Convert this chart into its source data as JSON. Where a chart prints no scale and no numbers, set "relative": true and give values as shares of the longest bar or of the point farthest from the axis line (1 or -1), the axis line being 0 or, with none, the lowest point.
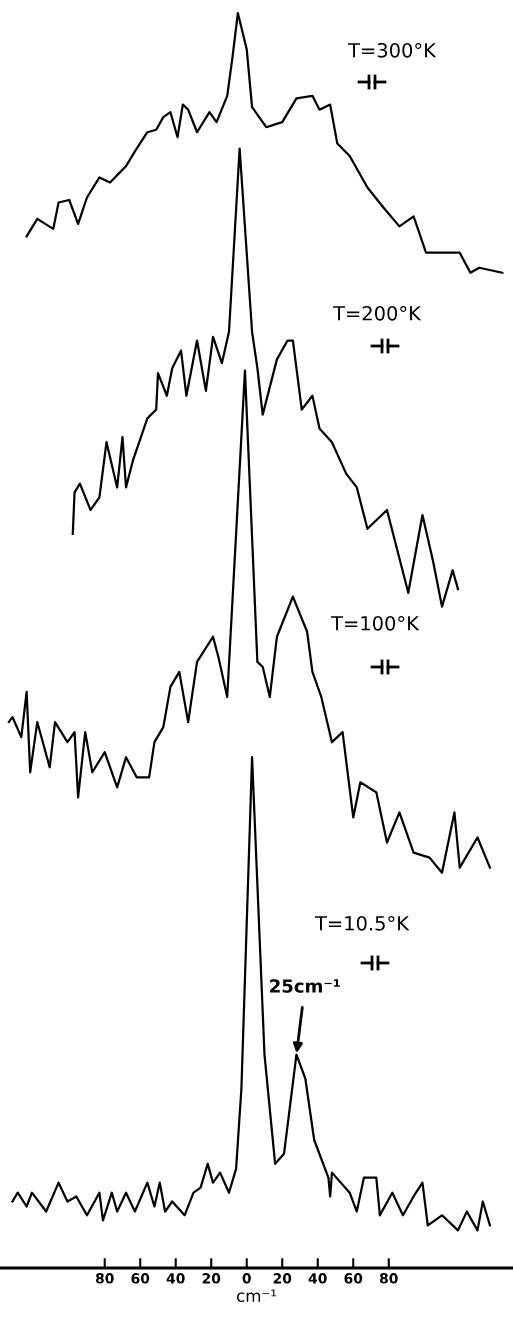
{
  "chart_data": {
    "type": "line",
    "relative": true,
    "xlim": [
      -139,
      150
    ],
    "xlabel": "cm⁻¹",
    "grid": false,
    "legend": false,
    "xticks": [
      {
        "value": -80,
        "label": "80"
      },
      {
        "value": -60,
        "label": "60"
      },
      {
        "value": -40,
        "label": "40"
      },
      {
        "value": -20,
        "label": "20"
      },
      0,
      20,
      40,
      60,
      80
    ],
    "annotations": [
      {
        "text": "25cm⁻¹",
        "x": 28,
        "y": 0.17
      }
    ],
    "series": [
      {
        "name": "T=300°K",
        "color": "#000000",
        "x": [
          -124,
          -118,
          -109,
          -106,
          -100,
          -95,
          -90,
          -83,
          -77,
          -68,
          -62,
          -56,
          -51,
          -47,
          -43,
          -39,
          -36,
          -33,
          -28,
          -21,
          -17,
          -11,
          -8,
          -5,
          0,
          3,
          11,
          20,
          28,
          37,
          41,
          47,
          51,
          58,
          68,
          77,
          86,
          94,
          101,
          110,
          120,
          126,
          131,
          144
        ],
        "values": [
          0.822,
          0.836,
          0.828,
          0.849,
          0.851,
          0.832,
          0.853,
          0.869,
          0.865,
          0.878,
          0.892,
          0.905,
          0.907,
          0.917,
          0.921,
          0.901,
          0.927,
          0.923,
          0.905,
          0.921,
          0.913,
          0.934,
          0.965,
          1,
          0.971,
          0.925,
          0.909,
          0.913,
          0.932,
          0.934,
          0.923,
          0.927,
          0.896,
          0.886,
          0.861,
          0.845,
          0.83,
          0.838,
          0.809,
          0.809,
          0.809,
          0.793,
          0.797,
          0.793
        ]
      },
      {
        "name": "T=200°K",
        "color": "#000000",
        "x": [
          -98,
          -97,
          -94,
          -88,
          -83,
          -79,
          -73,
          -70,
          -68,
          -64,
          -56,
          -51,
          -50,
          -45,
          -42,
          -37,
          -34,
          -28,
          -23,
          -19,
          -14,
          -10,
          -4,
          3,
          6,
          9,
          17,
          23,
          26,
          31,
          37,
          41,
          48,
          56,
          62,
          68,
          79,
          91,
          99,
          105,
          110,
          116,
          119
        ],
        "values": [
          0.585,
          0.618,
          0.625,
          0.604,
          0.614,
          0.658,
          0.622,
          0.662,
          0.622,
          0.644,
          0.677,
          0.684,
          0.713,
          0.695,
          0.717,
          0.731,
          0.695,
          0.739,
          0.699,
          0.742,
          0.721,
          0.746,
          0.892,
          0.746,
          0.717,
          0.68,
          0.724,
          0.739,
          0.739,
          0.684,
          0.695,
          0.669,
          0.658,
          0.633,
          0.622,
          0.589,
          0.604,
          0.538,
          0.6,
          0.563,
          0.527,
          0.556,
          0.541
        ]
      },
      {
        "name": "T=100°K",
        "color": "#000000",
        "x": [
          -134,
          -132,
          -127,
          -124,
          -122,
          -118,
          -111,
          -108,
          -101,
          -97,
          -95,
          -91,
          -87,
          -80,
          -73,
          -68,
          -62,
          -55,
          -52,
          -47,
          -43,
          -38,
          -33,
          -28,
          -19,
          -16,
          -11,
          -1,
          6,
          9,
          13,
          17,
          26,
          34,
          37,
          42,
          48,
          54,
          60,
          64,
          73,
          79,
          86,
          94,
          103,
          110,
          117,
          120,
          130,
          137
        ],
        "values": [
          0.435,
          0.439,
          0.423,
          0.459,
          0.395,
          0.435,
          0.399,
          0.435,
          0.419,
          0.427,
          0.375,
          0.427,
          0.395,
          0.411,
          0.383,
          0.407,
          0.391,
          0.391,
          0.419,
          0.431,
          0.463,
          0.475,
          0.435,
          0.483,
          0.503,
          0.487,
          0.455,
          0.715,
          0.483,
          0.479,
          0.455,
          0.503,
          0.535,
          0.507,
          0.475,
          0.455,
          0.419,
          0.427,
          0.359,
          0.387,
          0.379,
          0.339,
          0.363,
          0.331,
          0.327,
          0.315,
          0.363,
          0.319,
          0.343,
          0.319
        ]
      },
      {
        "name": "T=10.5°K",
        "color": "#000000",
        "x": [
          -132,
          -129,
          -124,
          -121,
          -113,
          -106,
          -101,
          -96,
          -90,
          -83,
          -81,
          -76,
          -73,
          -68,
          -63,
          -56,
          -52,
          -49,
          -46,
          -42,
          -35,
          -30,
          -26,
          -22,
          -19,
          -15,
          -10,
          -6,
          -3,
          3,
          10,
          16,
          21,
          28,
          33,
          38,
          46,
          47,
          48,
          58,
          62,
          66,
          73,
          75,
          82,
          88,
          94,
          99,
          102,
          110,
          119,
          124,
          130,
          133,
          137
        ],
        "values": [
          0.053,
          0.06,
          0.049,
          0.06,
          0.045,
          0.068,
          0.053,
          0.057,
          0.042,
          0.06,
          0.038,
          0.06,
          0.045,
          0.06,
          0.045,
          0.068,
          0.049,
          0.068,
          0.045,
          0.053,
          0.042,
          0.06,
          0.064,
          0.083,
          0.068,
          0.076,
          0.06,
          0.079,
          0.143,
          0.407,
          0.17,
          0.083,
          0.091,
          0.17,
          0.151,
          0.102,
          0.072,
          0.057,
          0.076,
          0.06,
          0.045,
          0.072,
          0.072,
          0.042,
          0.06,
          0.042,
          0.057,
          0.068,
          0.034,
          0.042,
          0.03,
          0.045,
          0.03,
          0.053,
          0.034
        ]
      }
    ]
  }
}
